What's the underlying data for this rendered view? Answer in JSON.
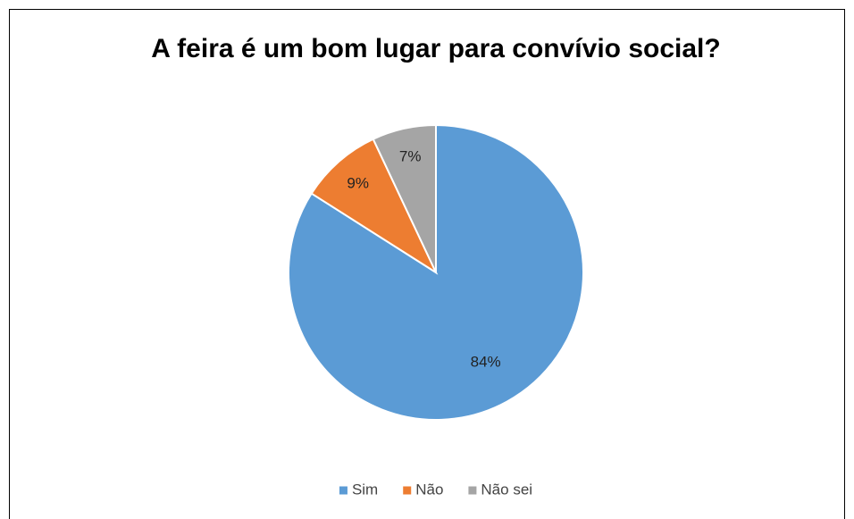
{
  "chart_data": {
    "type": "pie",
    "title": "A feira é um bom lugar para convívio social?",
    "categories": [
      "Sim",
      "Não",
      "Não sei"
    ],
    "values": [
      84,
      9,
      7
    ],
    "value_labels": [
      "84%",
      "9%",
      "7%"
    ],
    "colors": [
      "#5b9bd5",
      "#ed7d31",
      "#a5a5a5"
    ],
    "legend": "bottom"
  }
}
